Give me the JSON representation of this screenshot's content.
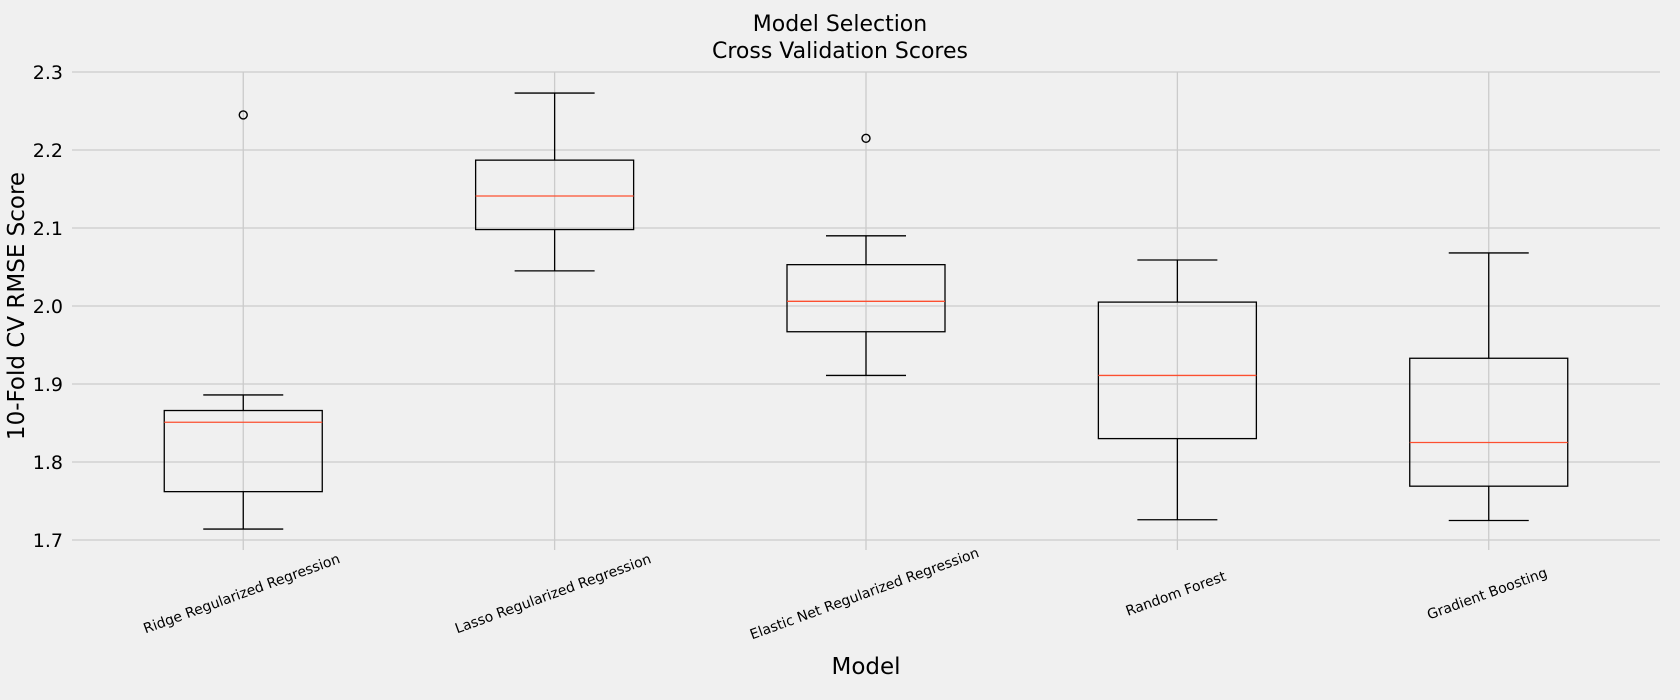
{
  "chart_data": {
    "type": "box",
    "title": [
      "Model Selection",
      "Cross Validation Scores"
    ],
    "xlabel": "Model",
    "ylabel": "10-Fold CV RMSE Score",
    "ylim": [
      1.7,
      2.3
    ],
    "yticks": [
      1.7,
      1.8,
      1.9,
      2.0,
      2.1,
      2.2,
      2.3
    ],
    "ytick_labels": [
      "1.7",
      "1.8",
      "1.9",
      "2.0",
      "2.1",
      "2.2",
      "2.3"
    ],
    "grid": true,
    "categories": [
      "Ridge Regularized Regression",
      "Lasso Regularized Regression",
      "Elastic Net Regularized Regression",
      "Random Forest",
      "Gradient Boosting"
    ],
    "boxes": [
      {
        "whisker_low": 1.714,
        "q1": 1.762,
        "median": 1.851,
        "q3": 1.866,
        "whisker_high": 1.886,
        "fliers": [
          2.245
        ]
      },
      {
        "whisker_low": 2.045,
        "q1": 2.098,
        "median": 2.141,
        "q3": 2.187,
        "whisker_high": 2.273,
        "fliers": []
      },
      {
        "whisker_low": 1.911,
        "q1": 1.967,
        "median": 2.006,
        "q3": 2.053,
        "whisker_high": 2.09,
        "fliers": [
          2.215
        ]
      },
      {
        "whisker_low": 1.726,
        "q1": 1.83,
        "median": 1.911,
        "q3": 2.005,
        "whisker_high": 2.059,
        "fliers": []
      },
      {
        "whisker_low": 1.725,
        "q1": 1.769,
        "median": 1.825,
        "q3": 1.933,
        "whisker_high": 2.068,
        "fliers": []
      }
    ]
  }
}
